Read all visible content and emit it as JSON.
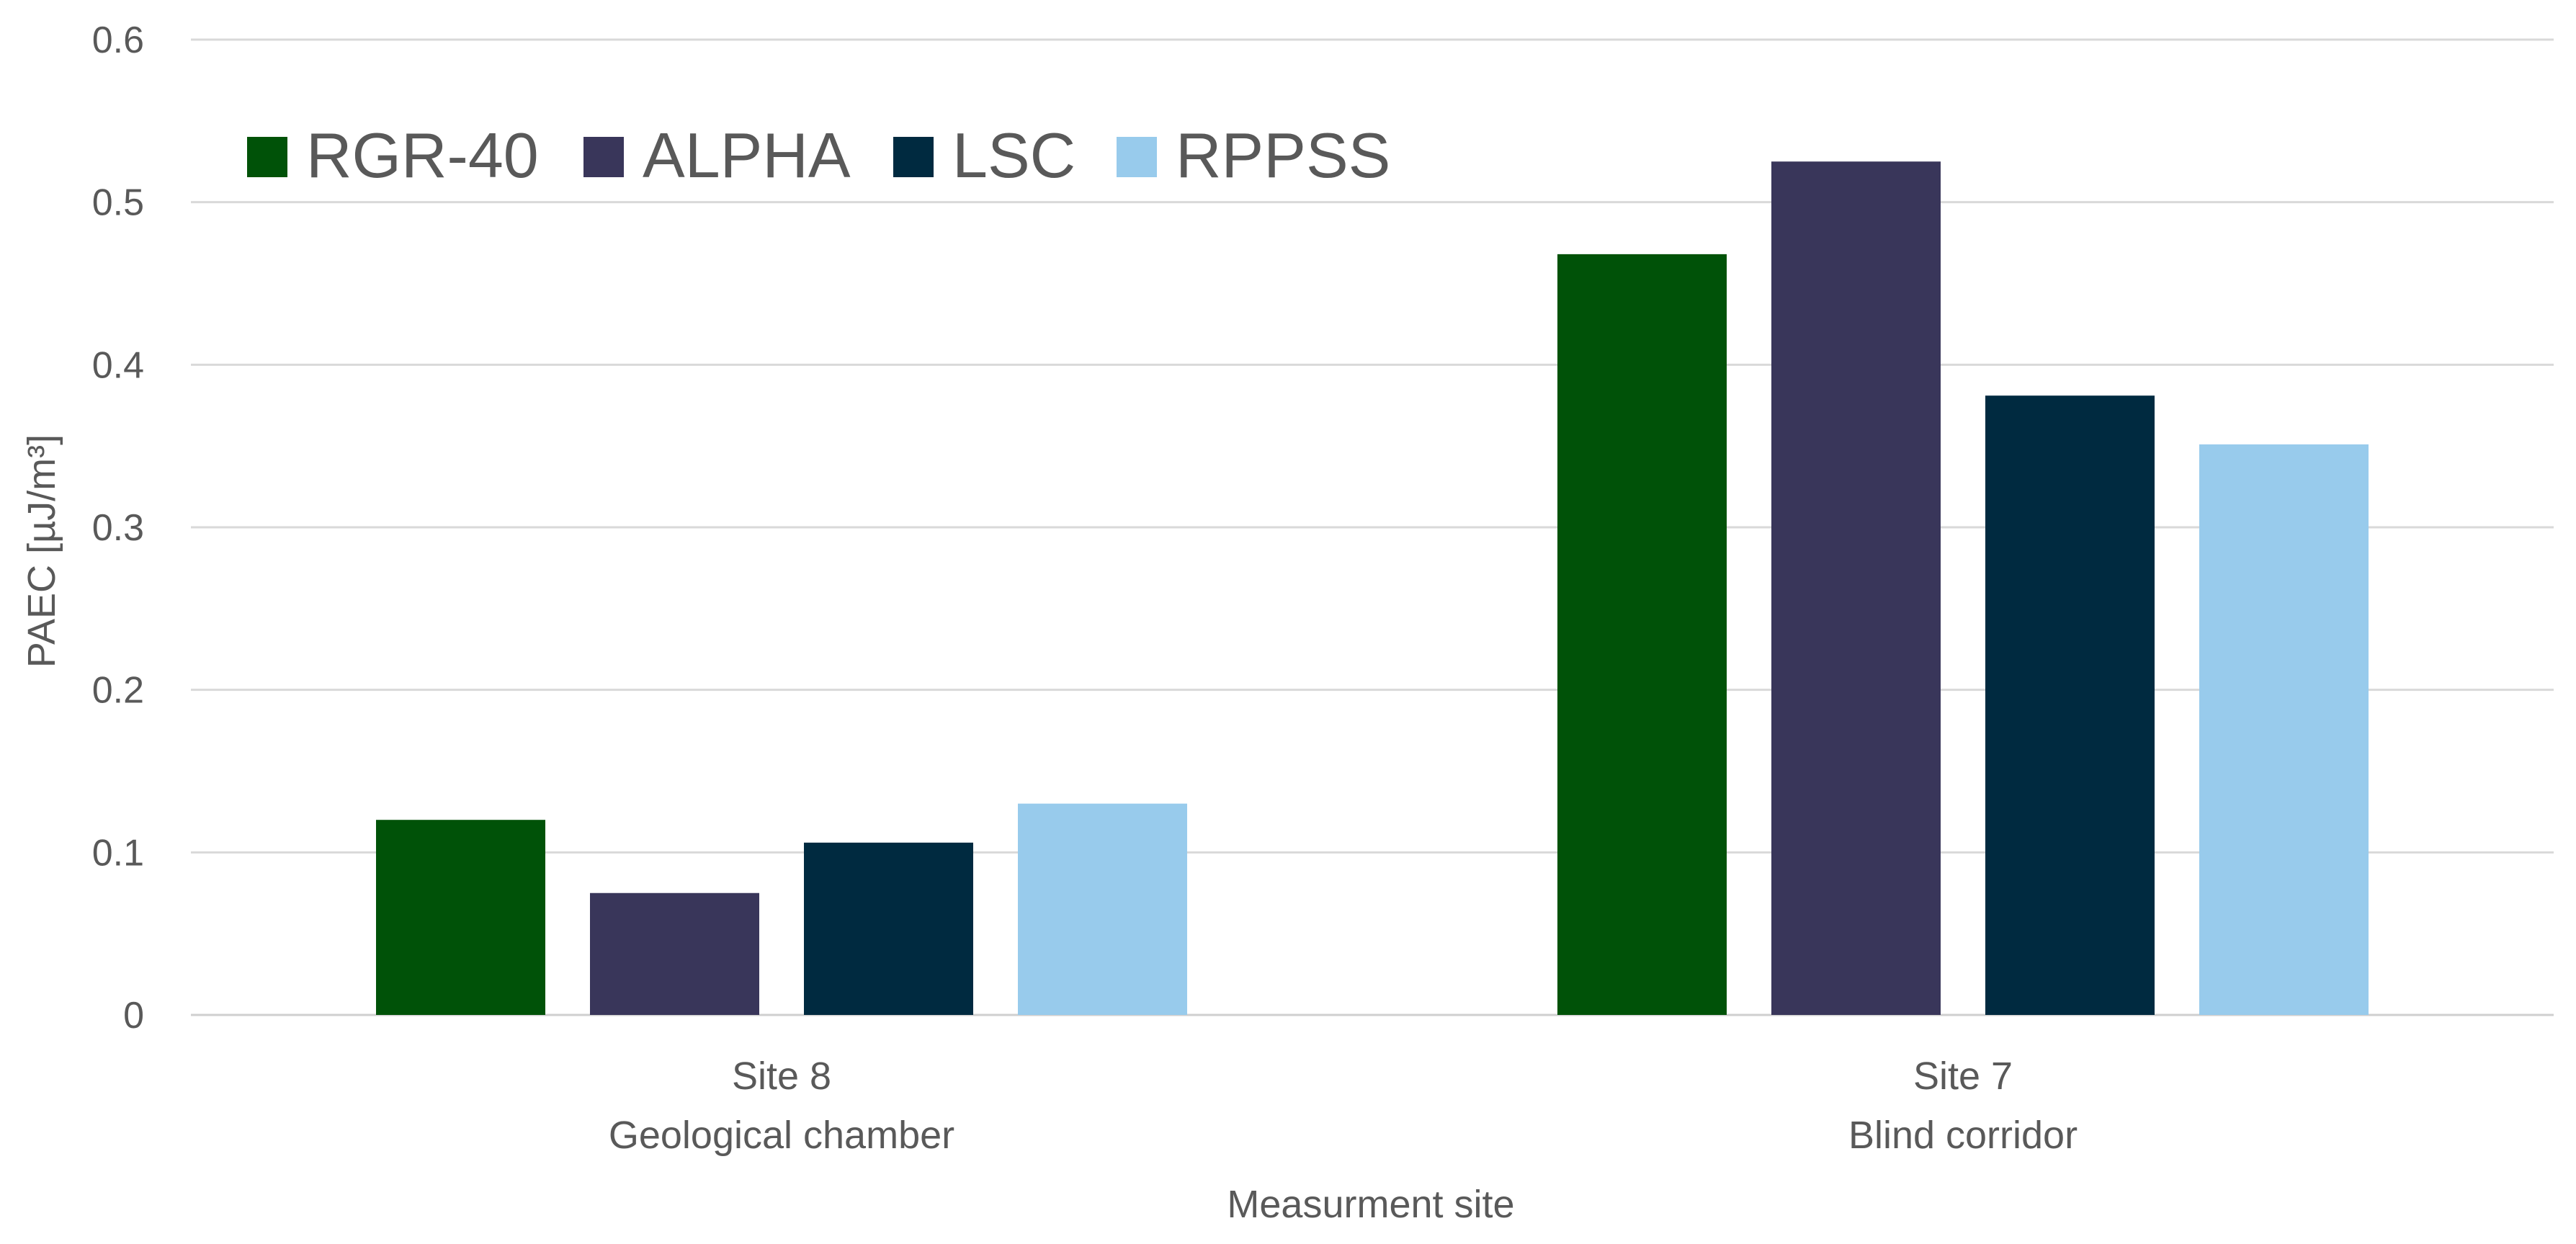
{
  "chart_data": {
    "type": "bar",
    "title": "",
    "xlabel": "Measurment site",
    "ylabel": "PAEC [µJ/m³]",
    "ylim": [
      0,
      0.6
    ],
    "yticks": [
      "0",
      "0.1",
      "0.2",
      "0.3",
      "0.4",
      "0.5",
      "0.6"
    ],
    "ytick_values": [
      0,
      0.1,
      0.2,
      0.3,
      0.4,
      0.5,
      0.6
    ],
    "grid": true,
    "legend_position": "top-left",
    "categories": [
      {
        "line1": "Site 8",
        "line2": "Geological chamber"
      },
      {
        "line1": "Site 7",
        "line2": "Blind corridor"
      }
    ],
    "series": [
      {
        "name": "RGR-40",
        "color": "#005208",
        "values": [
          0.12,
          0.468
        ]
      },
      {
        "name": "ALPHA",
        "color": "#39365A",
        "values": [
          0.075,
          0.525
        ]
      },
      {
        "name": "LSC",
        "color": "#002A40",
        "values": [
          0.106,
          0.381
        ]
      },
      {
        "name": "RPPSS",
        "color": "#98CBEC",
        "values": [
          0.13,
          0.351
        ]
      }
    ]
  }
}
